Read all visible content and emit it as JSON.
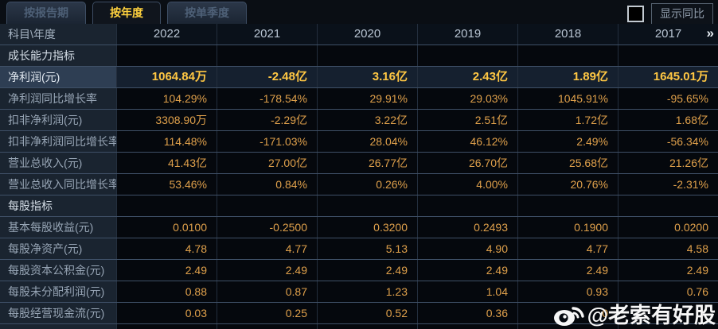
{
  "tabs": [
    {
      "label": "按报告期",
      "active": false
    },
    {
      "label": "按年度",
      "active": true
    },
    {
      "label": "按单季度",
      "active": false
    }
  ],
  "show_yoy": {
    "label": "显示同比",
    "checked": false
  },
  "table": {
    "corner_label": "科目\\年度",
    "years": [
      "2022",
      "2021",
      "2020",
      "2019",
      "2018",
      "2017"
    ],
    "more_icon": "»",
    "rows": [
      {
        "type": "section",
        "label": "成长能力指标",
        "values": [
          "",
          "",
          "",
          "",
          "",
          ""
        ]
      },
      {
        "type": "highlight",
        "label": "净利润(元)",
        "values": [
          "1064.84万",
          "-2.48亿",
          "3.16亿",
          "2.43亿",
          "1.89亿",
          "1645.01万"
        ]
      },
      {
        "type": "normal",
        "label": "净利润同比增长率",
        "values": [
          "104.29%",
          "-178.54%",
          "29.91%",
          "29.03%",
          "1045.91%",
          "-95.65%"
        ]
      },
      {
        "type": "normal",
        "label": "扣非净利润(元)",
        "values": [
          "3308.90万",
          "-2.29亿",
          "3.22亿",
          "2.51亿",
          "1.72亿",
          "1.68亿"
        ]
      },
      {
        "type": "normal",
        "label": "扣非净利润同比增长率",
        "values": [
          "114.48%",
          "-171.03%",
          "28.04%",
          "46.12%",
          "2.49%",
          "-56.34%"
        ]
      },
      {
        "type": "normal",
        "label": "营业总收入(元)",
        "values": [
          "41.43亿",
          "27.00亿",
          "26.77亿",
          "26.70亿",
          "25.68亿",
          "21.26亿"
        ]
      },
      {
        "type": "normal",
        "label": "营业总收入同比增长率",
        "values": [
          "53.46%",
          "0.84%",
          "0.26%",
          "4.00%",
          "20.76%",
          "-2.31%"
        ]
      },
      {
        "type": "section",
        "label": "每股指标",
        "values": [
          "",
          "",
          "",
          "",
          "",
          ""
        ]
      },
      {
        "type": "normal",
        "label": "基本每股收益(元)",
        "values": [
          "0.0100",
          "-0.2500",
          "0.3200",
          "0.2493",
          "0.1900",
          "0.0200"
        ]
      },
      {
        "type": "normal",
        "label": "每股净资产(元)",
        "values": [
          "4.78",
          "4.77",
          "5.13",
          "4.90",
          "4.77",
          "4.58"
        ]
      },
      {
        "type": "normal",
        "label": "每股资本公积金(元)",
        "values": [
          "2.49",
          "2.49",
          "2.49",
          "2.49",
          "2.49",
          "2.49"
        ]
      },
      {
        "type": "normal",
        "label": "每股未分配利润(元)",
        "values": [
          "0.88",
          "0.87",
          "1.23",
          "1.04",
          "0.93",
          "0.76"
        ]
      },
      {
        "type": "normal",
        "label": "每股经营现金流(元)",
        "values": [
          "0.03",
          "0.25",
          "0.52",
          "0.36",
          "0",
          ""
        ]
      }
    ]
  },
  "watermark": {
    "handle": "@老索有好股",
    "icon": "weibo-icon"
  },
  "colors": {
    "value_orange": "#dfa04b",
    "highlight_yellow": "#ffc743",
    "tab_active_yellow": "#ffd23e",
    "label_column_bg": "#1a2430",
    "highlight_row_bg": "#15202f",
    "watermark_white": "#ffffff"
  }
}
